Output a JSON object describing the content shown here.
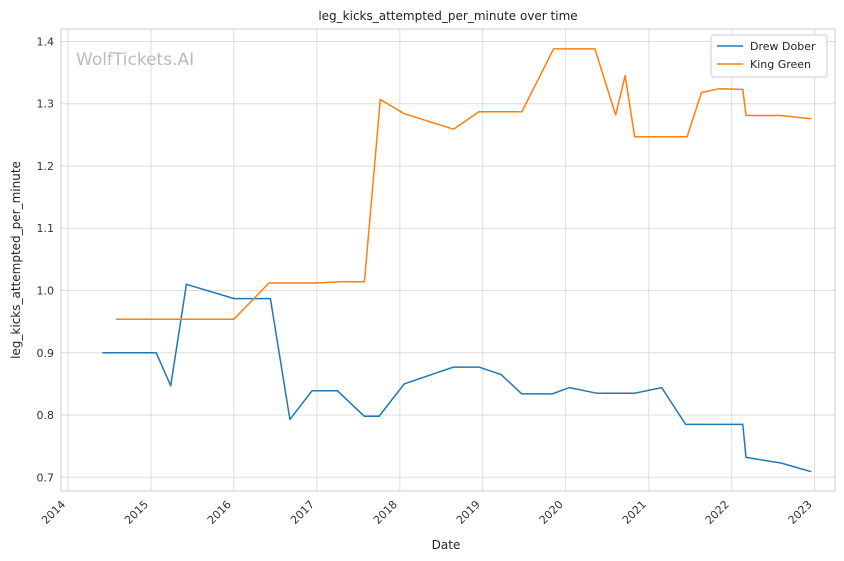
{
  "chart_data": {
    "type": "line",
    "title": "leg_kicks_attempted_per_minute over time",
    "xlabel": "Date",
    "ylabel": "leg_kicks_attempted_per_minute",
    "watermark": "WolfTickets.AI",
    "x_ticks": [
      "2014",
      "2015",
      "2016",
      "2017",
      "2018",
      "2019",
      "2020",
      "2021",
      "2022",
      "2023"
    ],
    "y_ticks": [
      "0.7",
      "0.8",
      "0.9",
      "1.0",
      "1.1",
      "1.2",
      "1.3",
      "1.4"
    ],
    "xlim": [
      "2013-12-01",
      "2023-04-01"
    ],
    "ylim": [
      0.678,
      1.42
    ],
    "grid": true,
    "legend_position": "top-right",
    "series": [
      {
        "name": "Drew Dober",
        "color": "#1f77b4",
        "points": [
          [
            "2014-06-01",
            0.9
          ],
          [
            "2015-01-24",
            0.9
          ],
          [
            "2015-03-29",
            0.847
          ],
          [
            "2015-06-06",
            1.01
          ],
          [
            "2016-01-02",
            0.987
          ],
          [
            "2016-06-10",
            0.987
          ],
          [
            "2016-09-04",
            0.793
          ],
          [
            "2016-12-10",
            0.839
          ],
          [
            "2017-04-01",
            0.839
          ],
          [
            "2017-07-29",
            0.798
          ],
          [
            "2017-10-01",
            0.798
          ],
          [
            "2018-01-20",
            0.85
          ],
          [
            "2018-08-25",
            0.877
          ],
          [
            "2018-12-15",
            0.877
          ],
          [
            "2019-03-23",
            0.865
          ],
          [
            "2019-06-22",
            0.834
          ],
          [
            "2019-11-02",
            0.834
          ],
          [
            "2020-01-18",
            0.844
          ],
          [
            "2020-05-16",
            0.835
          ],
          [
            "2020-10-31",
            0.835
          ],
          [
            "2021-02-27",
            0.844
          ],
          [
            "2021-06-12",
            0.785
          ],
          [
            "2022-02-19",
            0.785
          ],
          [
            "2022-03-05",
            0.732
          ],
          [
            "2022-08-06",
            0.723
          ],
          [
            "2022-12-17",
            0.709
          ]
        ]
      },
      {
        "name": "King Green",
        "color": "#ff7f0e",
        "points": [
          [
            "2014-08-01",
            0.954
          ],
          [
            "2016-01-01",
            0.954
          ],
          [
            "2016-06-04",
            1.012
          ],
          [
            "2016-12-17",
            1.012
          ],
          [
            "2017-04-22",
            1.014
          ],
          [
            "2017-07-29",
            1.014
          ],
          [
            "2017-10-07",
            1.307
          ],
          [
            "2018-01-20",
            1.284
          ],
          [
            "2018-08-25",
            1.259
          ],
          [
            "2018-12-15",
            1.287
          ],
          [
            "2019-06-22",
            1.287
          ],
          [
            "2019-11-09",
            1.388
          ],
          [
            "2020-05-09",
            1.388
          ],
          [
            "2020-08-08",
            1.282
          ],
          [
            "2020-09-19",
            1.345
          ],
          [
            "2020-10-31",
            1.247
          ],
          [
            "2021-06-19",
            1.247
          ],
          [
            "2021-08-21",
            1.318
          ],
          [
            "2021-11-06",
            1.324
          ],
          [
            "2022-02-19",
            1.323
          ],
          [
            "2022-03-05",
            1.281
          ],
          [
            "2022-08-06",
            1.281
          ],
          [
            "2022-12-17",
            1.276
          ]
        ]
      }
    ]
  }
}
